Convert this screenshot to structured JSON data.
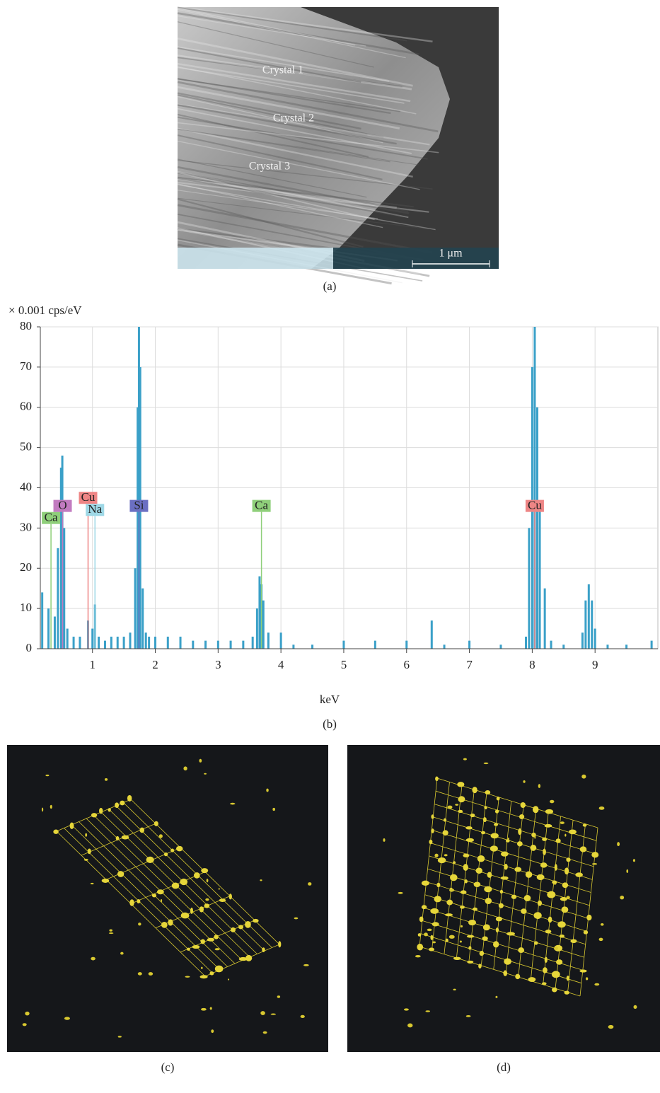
{
  "panels": {
    "a": {
      "caption": "(a)",
      "labels": [
        "Crystal 1",
        "Crystal 2",
        "Crystal 3"
      ],
      "scale_bar": "1 μm"
    },
    "b": {
      "caption": "(b)"
    },
    "c": {
      "caption": "(c)"
    },
    "d": {
      "caption": "(d)"
    }
  },
  "chart_data": {
    "type": "spectrum",
    "y_label": "× 0.001 cps/eV",
    "x_label": "keV",
    "color": "#3aa0c8",
    "x": [
      0.2,
      0.3,
      0.4,
      0.45,
      0.5,
      0.52,
      0.55,
      0.6,
      0.7,
      0.8,
      0.93,
      1.0,
      1.04,
      1.1,
      1.2,
      1.3,
      1.4,
      1.5,
      1.6,
      1.68,
      1.72,
      1.74,
      1.76,
      1.8,
      1.85,
      1.9,
      2.0,
      2.2,
      2.4,
      2.6,
      2.8,
      3.0,
      3.2,
      3.4,
      3.55,
      3.62,
      3.66,
      3.69,
      3.72,
      3.8,
      4.0,
      4.2,
      4.5,
      5.0,
      5.5,
      6.0,
      6.4,
      6.6,
      7.0,
      7.5,
      7.9,
      7.95,
      8.0,
      8.04,
      8.08,
      8.12,
      8.2,
      8.3,
      8.5,
      8.8,
      8.85,
      8.9,
      8.95,
      9.0,
      9.2,
      9.5,
      9.9
    ],
    "values": [
      14,
      10,
      8,
      25,
      45,
      48,
      30,
      5,
      3,
      3,
      7,
      5,
      11,
      3,
      2,
      3,
      3,
      3,
      4,
      20,
      60,
      80,
      70,
      15,
      4,
      3,
      3,
      3,
      3,
      2,
      2,
      2,
      2,
      2,
      3,
      10,
      18,
      16,
      12,
      4,
      4,
      1,
      1,
      2,
      2,
      2,
      7,
      1,
      2,
      1,
      3,
      30,
      70,
      80,
      60,
      35,
      15,
      2,
      1,
      4,
      12,
      16,
      12,
      5,
      1,
      1,
      2
    ],
    "xlim": [
      0.17,
      10
    ],
    "ylim": [
      0,
      80
    ],
    "xticks": [
      1,
      2,
      3,
      4,
      5,
      6,
      7,
      8,
      9
    ],
    "yticks": [
      0,
      10,
      20,
      30,
      40,
      50,
      60,
      70,
      80
    ],
    "grid": true,
    "element_markers": [
      {
        "label": "Ca",
        "x": 0.34,
        "y": 31,
        "color": "#8fcf7a"
      },
      {
        "label": "O",
        "x": 0.525,
        "y": 34,
        "color": "#c27bc0"
      },
      {
        "label": "Cu",
        "x": 0.93,
        "y": 36,
        "color": "#ee8585"
      },
      {
        "label": "Na",
        "x": 1.04,
        "y": 33,
        "color": "#9ed8e6"
      },
      {
        "label": "Si",
        "x": 1.74,
        "y": 34,
        "color": "#6b6fc2"
      },
      {
        "label": "Ca",
        "x": 3.69,
        "y": 34,
        "color": "#8fcf7a"
      },
      {
        "label": "Cu",
        "x": 8.04,
        "y": 34,
        "color": "#ee8585"
      }
    ]
  }
}
